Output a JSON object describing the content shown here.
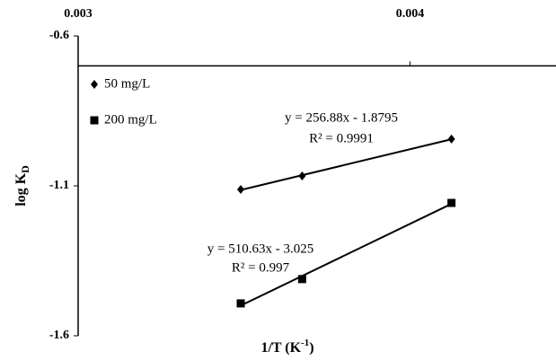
{
  "chart_data": {
    "type": "scatter",
    "xlabel": "1/T (K",
    "xlabel_sup": "-1",
    "xlabel_end": ")",
    "ylabel": "log K",
    "ylabel_sub": "D",
    "xlim": [
      0.003,
      0.00444
    ],
    "xticks": [
      0.003,
      0.004
    ],
    "ylim": [
      -1.6,
      -0.6
    ],
    "yticks": [
      -0.6,
      -1.1,
      -1.6
    ],
    "x_axis_at": -0.7,
    "trendline": true,
    "series": [
      {
        "name": "50 mg/L",
        "marker": "diamond",
        "color": "#000000",
        "x": [
          0.00349,
          0.003675,
          0.004125
        ],
        "values": [
          -1.112,
          -1.067,
          -0.944
        ],
        "equation": "y = 256.88x - 1.8795",
        "r2": "R² = 0.9991"
      },
      {
        "name": "200 mg/L",
        "marker": "square",
        "color": "#000000",
        "x": [
          0.00349,
          0.003675,
          0.004125
        ],
        "values": [
          -1.492,
          -1.411,
          -1.157
        ],
        "equation": "y = 510.63x - 3.025",
        "r2": "R² = 0.997"
      }
    ]
  }
}
